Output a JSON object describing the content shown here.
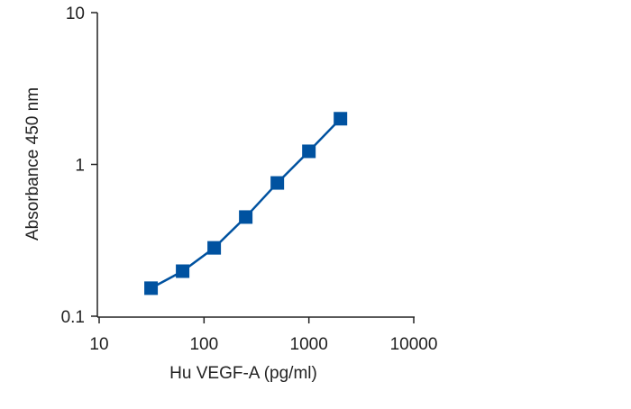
{
  "chart_data": {
    "type": "line",
    "title": "",
    "xlabel": "Hu VEGF-A (pg/ml)",
    "ylabel": "Absorbance 450 nm",
    "xscale": "log",
    "yscale": "log",
    "xlim": [
      10,
      10000
    ],
    "ylim": [
      0.1,
      10
    ],
    "xticks": [
      10,
      100,
      1000,
      10000
    ],
    "xtick_labels": [
      "10",
      "100",
      "1000",
      "10000"
    ],
    "yticks": [
      0.1,
      1,
      10
    ],
    "ytick_labels": [
      "0.1",
      "1",
      "10"
    ],
    "grid": false,
    "series": [
      {
        "name": "Hu VEGF-A",
        "color": "#0052a0",
        "marker": "square",
        "x": [
          31.25,
          62.5,
          125,
          250,
          500,
          1000,
          2000
        ],
        "y": [
          0.153,
          0.198,
          0.282,
          0.45,
          0.755,
          1.22,
          2.0
        ]
      }
    ]
  }
}
